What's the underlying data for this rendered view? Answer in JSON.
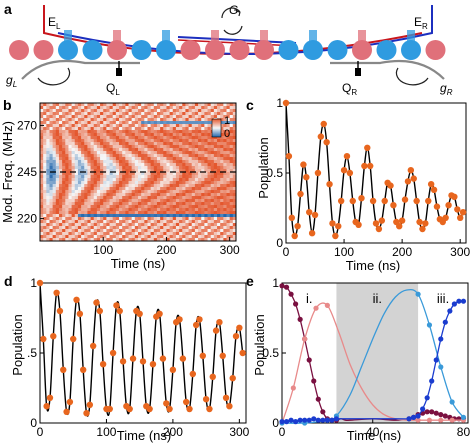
{
  "panels": {
    "a": "a",
    "b": "b",
    "c": "c",
    "d": "d",
    "e": "e"
  },
  "panel_a": {
    "labels": {
      "E_L": "E",
      "E_L_sub": "L",
      "E_R": "E",
      "E_R_sub": "R",
      "G": "G",
      "g_L": "g",
      "g_L_sub": "L",
      "g_R": "g",
      "g_R_sub": "R",
      "Q_L": "Q",
      "Q_L_sub": "L",
      "Q_R": "Q",
      "Q_R_sub": "R"
    },
    "colors": {
      "red": "#e0707a",
      "blue": "#2f9be0",
      "red_line": "#c8161d",
      "blue_line": "#1c2fbf",
      "gray": "#888888"
    },
    "qubit_row": [
      "R",
      "R",
      "B",
      "B",
      "R",
      "B",
      "B",
      "R",
      "R",
      "R",
      "R",
      "B",
      "B",
      "B",
      "R",
      "B",
      "B",
      "R"
    ]
  },
  "chart_data": [
    {
      "panel": "b",
      "type": "heatmap",
      "xlabel": "Time (ns)",
      "ylabel": "Mod. Freq. (MHz)",
      "xlim": [
        0,
        310
      ],
      "ylim": [
        208,
        282
      ],
      "xticks": [
        100,
        200,
        300
      ],
      "yticks": [
        220,
        245,
        270
      ],
      "colorbar": {
        "min": 0,
        "max": 1,
        "ticks": [
          "1",
          "0"
        ],
        "colors": [
          "#2166ac",
          "#f7f7f7",
          "#e4572e"
        ]
      },
      "reference_line_y": 245
    },
    {
      "panel": "c",
      "type": "scatter",
      "xlabel": "Time (ns)",
      "ylabel": "Population",
      "xlim": [
        0,
        310
      ],
      "ylim": [
        0,
        1
      ],
      "xticks": [
        0,
        100,
        200,
        300
      ],
      "yticks": [
        0,
        0.5,
        1
      ],
      "ytick_labels": [
        "0",
        "0.5",
        "1"
      ],
      "marker_color": "#e8661e",
      "fit_color": "#000000",
      "x": [
        0,
        5,
        10,
        15,
        20,
        25,
        30,
        35,
        40,
        45,
        50,
        55,
        60,
        65,
        70,
        75,
        80,
        85,
        90,
        95,
        100,
        105,
        110,
        115,
        120,
        125,
        130,
        135,
        140,
        145,
        150,
        155,
        160,
        165,
        170,
        175,
        180,
        185,
        190,
        195,
        200,
        205,
        210,
        215,
        220,
        225,
        230,
        235,
        240,
        245,
        250,
        255,
        260,
        265,
        270,
        275,
        280,
        285,
        290,
        295,
        300,
        305
      ],
      "values": [
        1.0,
        0.62,
        0.18,
        0.05,
        0.12,
        0.35,
        0.56,
        0.47,
        0.22,
        0.07,
        0.2,
        0.5,
        0.76,
        0.85,
        0.72,
        0.42,
        0.14,
        0.05,
        0.12,
        0.3,
        0.52,
        0.62,
        0.5,
        0.3,
        0.15,
        0.13,
        0.32,
        0.55,
        0.68,
        0.55,
        0.3,
        0.14,
        0.1,
        0.16,
        0.3,
        0.43,
        0.41,
        0.27,
        0.15,
        0.12,
        0.16,
        0.31,
        0.44,
        0.52,
        0.46,
        0.3,
        0.15,
        0.1,
        0.14,
        0.3,
        0.42,
        0.38,
        0.26,
        0.17,
        0.15,
        0.18,
        0.27,
        0.34,
        0.33,
        0.24,
        0.18,
        0.22
      ]
    },
    {
      "panel": "d",
      "type": "scatter",
      "xlabel": "Time (ns)",
      "ylabel": "Population",
      "xlim": [
        0,
        310
      ],
      "ylim": [
        0,
        1
      ],
      "xticks": [
        0,
        100,
        200,
        300
      ],
      "yticks": [
        0,
        0.5,
        1
      ],
      "ytick_labels": [
        "0",
        ".5",
        "1"
      ],
      "marker_color": "#e8661e",
      "fit_color": "#000000",
      "x": [
        0,
        5,
        10,
        15,
        20,
        25,
        30,
        35,
        40,
        45,
        50,
        55,
        60,
        65,
        70,
        75,
        80,
        85,
        90,
        95,
        100,
        105,
        110,
        115,
        120,
        125,
        130,
        135,
        140,
        145,
        150,
        155,
        160,
        165,
        170,
        175,
        180,
        185,
        190,
        195,
        200,
        205,
        210,
        215,
        220,
        225,
        230,
        235,
        240,
        245,
        250,
        255,
        260,
        265,
        270,
        275,
        280,
        285,
        290,
        295,
        300,
        305
      ],
      "values": [
        1.0,
        0.6,
        0.12,
        0.18,
        0.62,
        0.93,
        0.8,
        0.38,
        0.08,
        0.15,
        0.6,
        0.88,
        0.78,
        0.38,
        0.07,
        0.13,
        0.55,
        0.86,
        0.8,
        0.42,
        0.1,
        0.1,
        0.5,
        0.84,
        0.8,
        0.44,
        0.12,
        0.1,
        0.46,
        0.8,
        0.78,
        0.44,
        0.12,
        0.1,
        0.42,
        0.76,
        0.78,
        0.46,
        0.14,
        0.1,
        0.38,
        0.72,
        0.74,
        0.46,
        0.15,
        0.1,
        0.35,
        0.7,
        0.74,
        0.48,
        0.17,
        0.1,
        0.33,
        0.66,
        0.72,
        0.48,
        0.18,
        0.12,
        0.32,
        0.62,
        0.68,
        0.5
      ]
    },
    {
      "panel": "e",
      "type": "line",
      "xlabel": "Time (ns)",
      "ylabel": "Population",
      "xlim": [
        0,
        82
      ],
      "ylim": [
        0,
        1
      ],
      "xticks": [
        0,
        40,
        80
      ],
      "yticks": [
        0,
        0.5,
        1
      ],
      "ytick_labels": [
        "0",
        "0.5",
        "1"
      ],
      "regions": [
        {
          "label": "i.",
          "x_start": 0,
          "x_end": 24
        },
        {
          "label": "ii.",
          "x_start": 24,
          "x_end": 60,
          "shaded": true
        },
        {
          "label": "iii.",
          "x_start": 60,
          "x_end": 82
        }
      ],
      "series": [
        {
          "color": "#7a1040",
          "x": [
            0,
            2,
            4,
            6,
            8,
            10,
            12,
            14,
            16,
            18,
            20,
            22,
            24,
            26,
            28,
            30,
            40,
            50,
            56,
            58,
            60,
            62,
            64,
            66,
            68,
            70,
            72,
            74,
            76,
            78,
            80
          ],
          "values": [
            0.98,
            0.97,
            0.92,
            0.85,
            0.74,
            0.6,
            0.45,
            0.3,
            0.17,
            0.08,
            0.03,
            0.02,
            0.02,
            0.03,
            0.02,
            0.02,
            0.03,
            0.02,
            0.03,
            0.04,
            0.06,
            0.07,
            0.08,
            0.08,
            0.07,
            0.06,
            0.05,
            0.04,
            0.03,
            0.03,
            0.03
          ]
        },
        {
          "color": "#e88a8a",
          "x": [
            0,
            5,
            10,
            15,
            20,
            25,
            30,
            35,
            40,
            45,
            50,
            55,
            60,
            65,
            70,
            75,
            80
          ],
          "values": [
            0.0,
            0.25,
            0.6,
            0.82,
            0.84,
            0.65,
            0.42,
            0.25,
            0.13,
            0.06,
            0.03,
            0.02,
            0.02,
            0.02,
            0.02,
            0.02,
            0.02
          ]
        },
        {
          "color": "#3a9ad9",
          "x": [
            0,
            10,
            20,
            24,
            30,
            35,
            40,
            45,
            50,
            55,
            60,
            65,
            70,
            75,
            80
          ],
          "values": [
            0.0,
            0.0,
            0.02,
            0.05,
            0.2,
            0.4,
            0.6,
            0.78,
            0.9,
            0.95,
            0.92,
            0.7,
            0.4,
            0.15,
            0.04
          ]
        },
        {
          "color": "#1a3ccf",
          "x": [
            0,
            2,
            4,
            6,
            8,
            10,
            12,
            14,
            16,
            18,
            20,
            22,
            24,
            50,
            56,
            58,
            60,
            62,
            64,
            66,
            68,
            70,
            72,
            74,
            76,
            78,
            80
          ],
          "values": [
            0.01,
            0.01,
            0.02,
            0.01,
            0.02,
            0.02,
            0.02,
            0.03,
            0.02,
            0.02,
            0.02,
            0.02,
            0.03,
            0.03,
            0.03,
            0.04,
            0.05,
            0.1,
            0.18,
            0.3,
            0.45,
            0.6,
            0.72,
            0.8,
            0.85,
            0.87,
            0.87
          ]
        }
      ]
    }
  ]
}
